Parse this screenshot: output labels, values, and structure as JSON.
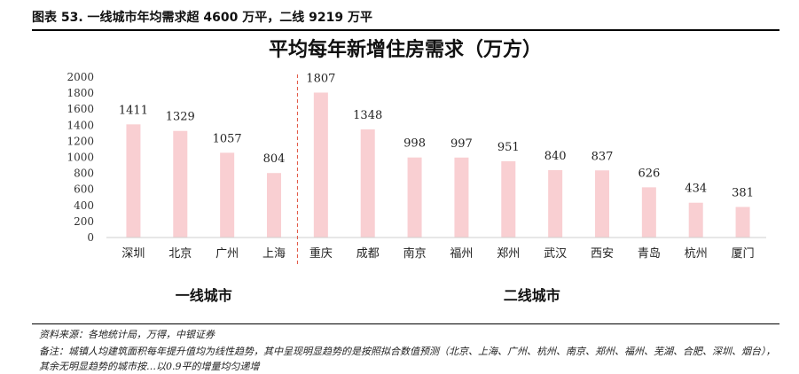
{
  "header": {
    "title": "图表 53. 一线城市年均需求超 4600 万平，二线 9219 万平"
  },
  "footer": {
    "source": "资料来源：各地统计局，万得，中银证券",
    "note": "备注：城镇人均建筑面积每年提升值均为线性趋势，其中呈现明显趋势的是按照拟合数值预测（北京、上海、广州、杭州、南京、郑州、福州、芜湖、合肥、深圳、烟台），其余无明显趋势的城市按…以0.9平的增量均匀递增"
  },
  "chart_data": {
    "type": "bar",
    "title": "平均每年新增住房需求（万方）",
    "categories": [
      "深圳",
      "北京",
      "广州",
      "上海",
      "重庆",
      "成都",
      "南京",
      "福州",
      "郑州",
      "武汉",
      "西安",
      "青岛",
      "杭州",
      "厦门"
    ],
    "values": [
      1411,
      1329,
      1057,
      804,
      1807,
      1348,
      998,
      997,
      951,
      840,
      837,
      626,
      434,
      381
    ],
    "data_labels": [
      "1411",
      "1329",
      "1057",
      "804",
      "1807",
      "1348",
      "998",
      "997",
      "951",
      "840",
      "837",
      "626",
      "434",
      "381"
    ],
    "ylim": [
      0,
      2000
    ],
    "yticks": [
      0,
      200,
      400,
      600,
      800,
      1000,
      1200,
      1400,
      1600,
      1800,
      2000
    ],
    "bar_color": "#f9cfd2",
    "divider_color": "#e0503c",
    "groups": [
      {
        "label": "一线城市",
        "start": 0,
        "end": 3
      },
      {
        "label": "二线城市",
        "start": 4,
        "end": 13
      }
    ],
    "grid": false,
    "legend": "none"
  }
}
